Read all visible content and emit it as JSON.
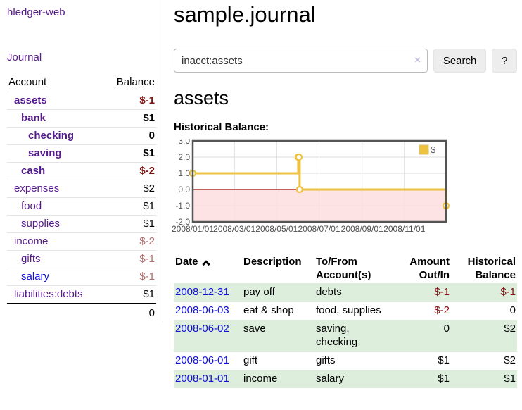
{
  "app": {
    "name": "hledger-web"
  },
  "colors": {
    "link_visited": "#551a8b",
    "link_unvisited": "#0f0fd6",
    "negative_strong": "#801414",
    "negative_muted": "#b36a6a",
    "row_stripe_green": "#ddeedd",
    "series_gold": "#edc240",
    "negative_region_pink": "#fcdcdc",
    "zero_line_red": "#a00000",
    "chart_border_gray": "#545454"
  },
  "sidebar": {
    "nav_journal": "Journal",
    "accounts": {
      "header_account": "Account",
      "header_balance": "Balance",
      "rows": [
        {
          "name": "assets",
          "depth": 1,
          "bold": true,
          "link": "visited",
          "balance": "$-1",
          "balance_style": "neg-strong"
        },
        {
          "name": "bank",
          "depth": 2,
          "bold": true,
          "link": "visited",
          "balance": "$1",
          "balance_style": "plain"
        },
        {
          "name": "checking",
          "depth": 3,
          "bold": true,
          "link": "visited",
          "balance": "0",
          "balance_style": "plain"
        },
        {
          "name": "saving",
          "depth": 3,
          "bold": true,
          "link": "visited",
          "balance": "$1",
          "balance_style": "plain"
        },
        {
          "name": "cash",
          "depth": 2,
          "bold": true,
          "link": "visited",
          "balance": "$-2",
          "balance_style": "neg-strong"
        },
        {
          "name": "expenses",
          "depth": 1,
          "bold": false,
          "link": "visited",
          "balance": "$2",
          "balance_style": "plain"
        },
        {
          "name": "food",
          "depth": 2,
          "bold": false,
          "link": "visited",
          "balance": "$1",
          "balance_style": "plain"
        },
        {
          "name": "supplies",
          "depth": 2,
          "bold": false,
          "link": "visited",
          "balance": "$1",
          "balance_style": "plain"
        },
        {
          "name": "income",
          "depth": 1,
          "bold": false,
          "link": "visited",
          "balance": "$-2",
          "balance_style": "neg-muted"
        },
        {
          "name": "gifts",
          "depth": 2,
          "bold": false,
          "link": "visited",
          "balance": "$-1",
          "balance_style": "neg-muted"
        },
        {
          "name": "salary",
          "depth": 2,
          "bold": false,
          "link": "new",
          "balance": "$-1",
          "balance_style": "neg-muted"
        },
        {
          "name": "liabilities:debts",
          "depth": 1,
          "bold": false,
          "link": "visited",
          "balance": "$1",
          "balance_style": "plain"
        }
      ],
      "total": "0"
    }
  },
  "main": {
    "title": "sample.journal",
    "search": {
      "value": "inacct:assets",
      "clear": "×",
      "button_label": "Search",
      "help_label": "?"
    },
    "account_heading": "assets",
    "section_heading": "Historical Balance:"
  },
  "chart_data": {
    "type": "line",
    "steps": true,
    "title": "Historical Balance:",
    "x_range": [
      "2008-01-01",
      "2008-12-31"
    ],
    "ylim": [
      -2,
      3
    ],
    "y_ticks": [
      "3.0",
      "2.0",
      "1.0",
      "0.0",
      "-1.0",
      "-2.0"
    ],
    "x_ticks": [
      "2008/01/01",
      "2008/03/01",
      "2008/05/01",
      "2008/07/01",
      "2008/09/01",
      "2008/11/01"
    ],
    "series": [
      {
        "name": "$",
        "color": "#edc240",
        "points": [
          [
            "2008-01-01",
            1
          ],
          [
            "2008-06-01",
            2
          ],
          [
            "2008-06-02",
            2
          ],
          [
            "2008-06-03",
            0
          ],
          [
            "2008-12-31",
            -1
          ]
        ]
      }
    ],
    "grid": true,
    "legend": {
      "label": "$",
      "position": "top-right"
    },
    "negative_region_color": "#fcdcdc",
    "zero_line_color": "#a00000",
    "border_color": "#545454"
  },
  "register": {
    "columns": [
      "Date",
      "Description",
      "To/From Account(s)",
      "Amount Out/In",
      "Historical Balance"
    ],
    "rows": [
      {
        "date": "2008-12-31",
        "description": "pay off",
        "accounts": "debts",
        "amount": "$-1",
        "amount_negative": true,
        "balance": "$-1",
        "balance_negative": true
      },
      {
        "date": "2008-06-03",
        "description": "eat & shop",
        "accounts": "food, supplies",
        "amount": "$-2",
        "amount_negative": true,
        "balance": "0",
        "balance_negative": false
      },
      {
        "date": "2008-06-02",
        "description": "save",
        "accounts": "saving, checking",
        "amount": "0",
        "amount_negative": false,
        "balance": "$2",
        "balance_negative": false
      },
      {
        "date": "2008-06-01",
        "description": "gift",
        "accounts": "gifts",
        "amount": "$1",
        "amount_negative": false,
        "balance": "$2",
        "balance_negative": false
      },
      {
        "date": "2008-01-01",
        "description": "income",
        "accounts": "salary",
        "amount": "$1",
        "amount_negative": false,
        "balance": "$1",
        "balance_negative": false
      }
    ]
  }
}
